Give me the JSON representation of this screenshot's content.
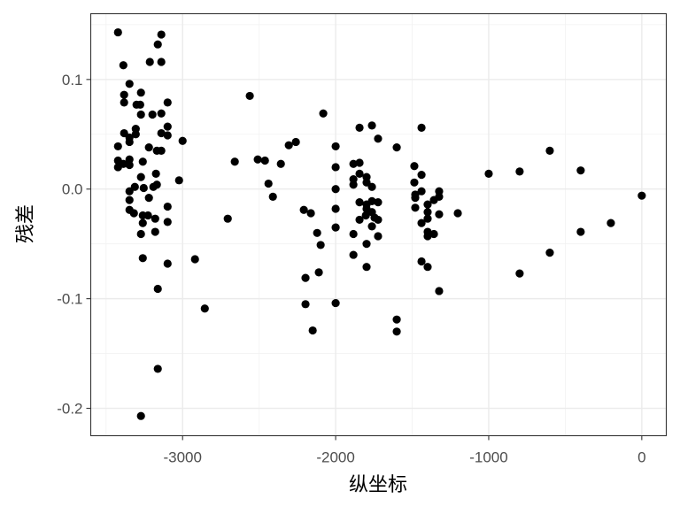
{
  "chart_data": {
    "type": "scatter",
    "title": "",
    "xlabel": "纵坐标",
    "ylabel": "残差",
    "xlim": [
      -3600,
      160
    ],
    "ylim": [
      -0.225,
      0.16
    ],
    "x_ticks": [
      -3000,
      -2000,
      -1000,
      0
    ],
    "x_tick_labels": [
      "-3000",
      "-2000",
      "-1000",
      "0"
    ],
    "y_ticks": [
      0.1,
      0.0,
      -0.1,
      -0.2
    ],
    "y_tick_labels": [
      "0.1",
      "0.0",
      "-0.1",
      "-0.2"
    ],
    "grid": true,
    "point_color": "#000000",
    "points": [
      [
        -3422,
        0.143
      ],
      [
        -3139,
        0.141
      ],
      [
        -3162,
        0.132
      ],
      [
        -3387,
        0.113
      ],
      [
        -3214,
        0.116
      ],
      [
        -3139,
        0.116
      ],
      [
        -3347,
        0.096
      ],
      [
        -3382,
        0.086
      ],
      [
        -3272,
        0.088
      ],
      [
        -3382,
        0.079
      ],
      [
        -3301,
        0.077
      ],
      [
        -3277,
        0.077
      ],
      [
        -3098,
        0.079
      ],
      [
        -3272,
        0.068
      ],
      [
        -3197,
        0.068
      ],
      [
        -3139,
        0.069
      ],
      [
        -3306,
        0.055
      ],
      [
        -3306,
        0.05
      ],
      [
        -3382,
        0.051
      ],
      [
        -3347,
        0.047
      ],
      [
        -3347,
        0.043
      ],
      [
        -3139,
        0.051
      ],
      [
        -3098,
        0.057
      ],
      [
        -3098,
        0.049
      ],
      [
        -3422,
        0.039
      ],
      [
        -3220,
        0.038
      ],
      [
        -3168,
        0.035
      ],
      [
        -3139,
        0.035
      ],
      [
        -3000,
        0.044
      ],
      [
        -3422,
        0.026
      ],
      [
        -3422,
        0.02
      ],
      [
        -3387,
        0.023
      ],
      [
        -3347,
        0.027
      ],
      [
        -3347,
        0.022
      ],
      [
        -3260,
        0.025
      ],
      [
        -3272,
        0.011
      ],
      [
        -3174,
        0.014
      ],
      [
        -3023,
        0.008
      ],
      [
        -3168,
        0.004
      ],
      [
        -3191,
        0.002
      ],
      [
        -3254,
        0.001
      ],
      [
        -3312,
        0.002
      ],
      [
        -3347,
        -0.002
      ],
      [
        -3347,
        -0.01
      ],
      [
        -3220,
        -0.008
      ],
      [
        -3098,
        -0.016
      ],
      [
        -3347,
        -0.019
      ],
      [
        -3318,
        -0.022
      ],
      [
        -3260,
        -0.024
      ],
      [
        -3226,
        -0.024
      ],
      [
        -3179,
        -0.027
      ],
      [
        -3260,
        -0.031
      ],
      [
        -3098,
        -0.03
      ],
      [
        -3272,
        -0.041
      ],
      [
        -3179,
        -0.039
      ],
      [
        -3260,
        -0.063
      ],
      [
        -3098,
        -0.068
      ],
      [
        -3162,
        -0.091
      ],
      [
        -3162,
        -0.164
      ],
      [
        -3272,
        -0.207
      ],
      [
        -2919,
        -0.064
      ],
      [
        -2855,
        -0.109
      ],
      [
        -2561,
        0.085
      ],
      [
        -2081,
        0.069
      ],
      [
        -2659,
        0.025
      ],
      [
        -2509,
        0.027
      ],
      [
        -2462,
        0.026
      ],
      [
        -2358,
        0.023
      ],
      [
        -2439,
        0.005
      ],
      [
        -2410,
        -0.007
      ],
      [
        -2306,
        0.04
      ],
      [
        -2260,
        0.043
      ],
      [
        -2705,
        -0.027
      ],
      [
        -2208,
        -0.019
      ],
      [
        -2162,
        -0.022
      ],
      [
        -2121,
        -0.04
      ],
      [
        -2098,
        -0.051
      ],
      [
        -2110,
        -0.076
      ],
      [
        -2197,
        -0.081
      ],
      [
        -2197,
        -0.105
      ],
      [
        -2150,
        -0.129
      ],
      [
        -2000,
        0.039
      ],
      [
        -2000,
        0.02
      ],
      [
        -2000,
        0.0
      ],
      [
        -2000,
        -0.018
      ],
      [
        -2000,
        -0.035
      ],
      [
        -2000,
        -0.104
      ],
      [
        -1844,
        0.056
      ],
      [
        -1763,
        0.058
      ],
      [
        -1723,
        0.046
      ],
      [
        -1884,
        0.023
      ],
      [
        -1844,
        0.024
      ],
      [
        -1844,
        0.014
      ],
      [
        -1798,
        0.011
      ],
      [
        -1884,
        0.009
      ],
      [
        -1884,
        0.004
      ],
      [
        -1798,
        0.006
      ],
      [
        -1763,
        0.002
      ],
      [
        -1601,
        0.038
      ],
      [
        -1844,
        -0.012
      ],
      [
        -1798,
        -0.014
      ],
      [
        -1798,
        -0.018
      ],
      [
        -1763,
        -0.011
      ],
      [
        -1723,
        -0.012
      ],
      [
        -1763,
        -0.021
      ],
      [
        -1803,
        -0.024
      ],
      [
        -1746,
        -0.026
      ],
      [
        -1723,
        -0.028
      ],
      [
        -1844,
        -0.028
      ],
      [
        -1884,
        -0.041
      ],
      [
        -1763,
        -0.034
      ],
      [
        -1723,
        -0.043
      ],
      [
        -1798,
        -0.05
      ],
      [
        -1884,
        -0.06
      ],
      [
        -1798,
        -0.071
      ],
      [
        -1601,
        -0.119
      ],
      [
        -1601,
        -0.13
      ],
      [
        -1439,
        0.056
      ],
      [
        -1486,
        0.021
      ],
      [
        -1439,
        0.013
      ],
      [
        -1486,
        0.006
      ],
      [
        -1439,
        -0.002
      ],
      [
        -1480,
        -0.005
      ],
      [
        -1480,
        -0.008
      ],
      [
        -1324,
        -0.002
      ],
      [
        -1324,
        -0.007
      ],
      [
        -1358,
        -0.01
      ],
      [
        -1399,
        -0.014
      ],
      [
        -1480,
        -0.017
      ],
      [
        -1399,
        -0.021
      ],
      [
        -1324,
        -0.023
      ],
      [
        -1202,
        -0.022
      ],
      [
        -1399,
        -0.027
      ],
      [
        -1439,
        -0.031
      ],
      [
        -1358,
        -0.041
      ],
      [
        -1399,
        -0.043
      ],
      [
        -1439,
        -0.066
      ],
      [
        -1399,
        -0.071
      ],
      [
        -1324,
        -0.093
      ],
      [
        -1399,
        -0.039
      ],
      [
        -1000,
        0.014
      ],
      [
        -798,
        0.016
      ],
      [
        -601,
        0.035
      ],
      [
        -399,
        0.017
      ],
      [
        -798,
        -0.077
      ],
      [
        -601,
        -0.058
      ],
      [
        -399,
        -0.039
      ],
      [
        -202,
        -0.031
      ],
      [
        0,
        -0.006
      ]
    ]
  }
}
